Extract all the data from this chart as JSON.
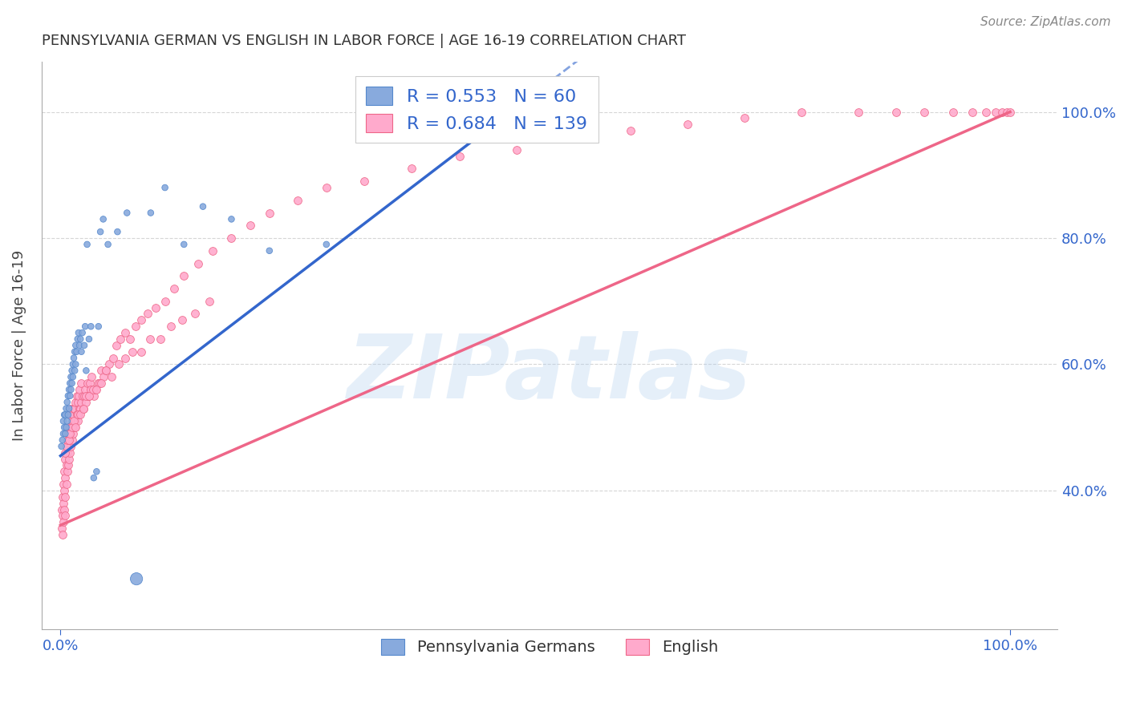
{
  "title": "PENNSYLVANIA GERMAN VS ENGLISH IN LABOR FORCE | AGE 16-19 CORRELATION CHART",
  "source": "Source: ZipAtlas.com",
  "ylabel": "In Labor Force | Age 16-19",
  "watermark": "ZIPatlas",
  "series": [
    {
      "label": "Pennsylvania Germans",
      "color": "#88AADD",
      "edge_color": "#5588CC",
      "R": 0.553,
      "N": 60,
      "line_color": "#3366CC",
      "intercept": 0.455,
      "slope": 1.15
    },
    {
      "label": "English",
      "color": "#FFAACC",
      "edge_color": "#EE6688",
      "R": 0.684,
      "N": 139,
      "line_color": "#EE6688",
      "intercept": 0.345,
      "slope": 0.655
    }
  ],
  "blue_scatter_x": [
    0.001,
    0.002,
    0.003,
    0.003,
    0.004,
    0.004,
    0.005,
    0.005,
    0.006,
    0.006,
    0.007,
    0.007,
    0.008,
    0.008,
    0.009,
    0.009,
    0.01,
    0.01,
    0.011,
    0.011,
    0.012,
    0.012,
    0.013,
    0.013,
    0.014,
    0.015,
    0.015,
    0.016,
    0.016,
    0.017,
    0.018,
    0.019,
    0.02,
    0.021,
    0.022,
    0.023,
    0.025,
    0.026,
    0.027,
    0.028,
    0.03,
    0.032,
    0.035,
    0.038,
    0.04,
    0.042,
    0.045,
    0.05,
    0.06,
    0.07,
    0.08,
    0.095,
    0.11,
    0.13,
    0.15,
    0.18,
    0.22,
    0.28,
    0.43,
    0.47
  ],
  "blue_scatter_y": [
    0.47,
    0.48,
    0.49,
    0.51,
    0.5,
    0.52,
    0.49,
    0.52,
    0.5,
    0.53,
    0.51,
    0.54,
    0.52,
    0.55,
    0.53,
    0.56,
    0.55,
    0.57,
    0.56,
    0.58,
    0.57,
    0.59,
    0.58,
    0.6,
    0.61,
    0.59,
    0.62,
    0.63,
    0.6,
    0.62,
    0.64,
    0.65,
    0.63,
    0.64,
    0.62,
    0.65,
    0.63,
    0.66,
    0.59,
    0.79,
    0.64,
    0.66,
    0.42,
    0.43,
    0.66,
    0.81,
    0.83,
    0.79,
    0.81,
    0.84,
    0.26,
    0.84,
    0.88,
    0.79,
    0.85,
    0.83,
    0.78,
    0.79,
    1.0,
    1.0
  ],
  "blue_scatter_sizes": [
    30,
    30,
    30,
    30,
    30,
    30,
    30,
    30,
    30,
    30,
    30,
    30,
    30,
    30,
    30,
    30,
    30,
    30,
    30,
    30,
    30,
    30,
    30,
    30,
    30,
    30,
    30,
    30,
    30,
    30,
    30,
    30,
    30,
    30,
    30,
    30,
    30,
    30,
    30,
    30,
    30,
    30,
    30,
    30,
    30,
    30,
    30,
    30,
    30,
    30,
    120,
    30,
    30,
    30,
    30,
    30,
    30,
    30,
    30,
    30
  ],
  "pink_scatter_x": [
    0.001,
    0.001,
    0.002,
    0.002,
    0.002,
    0.003,
    0.003,
    0.003,
    0.004,
    0.004,
    0.004,
    0.005,
    0.005,
    0.005,
    0.005,
    0.006,
    0.006,
    0.006,
    0.007,
    0.007,
    0.007,
    0.008,
    0.008,
    0.008,
    0.009,
    0.009,
    0.01,
    0.01,
    0.01,
    0.011,
    0.011,
    0.011,
    0.012,
    0.012,
    0.013,
    0.013,
    0.014,
    0.014,
    0.015,
    0.015,
    0.016,
    0.016,
    0.017,
    0.017,
    0.018,
    0.018,
    0.019,
    0.019,
    0.02,
    0.02,
    0.021,
    0.022,
    0.022,
    0.023,
    0.024,
    0.025,
    0.026,
    0.027,
    0.028,
    0.029,
    0.03,
    0.031,
    0.032,
    0.033,
    0.035,
    0.037,
    0.039,
    0.041,
    0.043,
    0.045,
    0.048,
    0.051,
    0.055,
    0.059,
    0.063,
    0.068,
    0.073,
    0.079,
    0.085,
    0.092,
    0.1,
    0.11,
    0.12,
    0.13,
    0.145,
    0.16,
    0.18,
    0.2,
    0.22,
    0.25,
    0.28,
    0.32,
    0.37,
    0.42,
    0.48,
    0.54,
    0.6,
    0.66,
    0.72,
    0.78,
    0.84,
    0.88,
    0.91,
    0.94,
    0.96,
    0.975,
    0.985,
    0.992,
    0.997,
    1.0,
    0.005,
    0.006,
    0.007,
    0.008,
    0.009,
    0.01,
    0.012,
    0.014,
    0.016,
    0.018,
    0.021,
    0.024,
    0.027,
    0.03,
    0.034,
    0.038,
    0.043,
    0.048,
    0.054,
    0.061,
    0.068,
    0.076,
    0.085,
    0.094,
    0.105,
    0.116,
    0.128,
    0.142,
    0.157
  ],
  "pink_scatter_y": [
    0.37,
    0.34,
    0.36,
    0.39,
    0.33,
    0.38,
    0.41,
    0.35,
    0.4,
    0.43,
    0.37,
    0.36,
    0.39,
    0.42,
    0.45,
    0.41,
    0.44,
    0.47,
    0.43,
    0.46,
    0.49,
    0.44,
    0.47,
    0.5,
    0.45,
    0.48,
    0.46,
    0.49,
    0.52,
    0.47,
    0.5,
    0.53,
    0.48,
    0.51,
    0.49,
    0.52,
    0.5,
    0.53,
    0.5,
    0.53,
    0.51,
    0.54,
    0.52,
    0.55,
    0.51,
    0.54,
    0.52,
    0.55,
    0.53,
    0.56,
    0.53,
    0.54,
    0.57,
    0.55,
    0.53,
    0.55,
    0.56,
    0.54,
    0.57,
    0.55,
    0.55,
    0.57,
    0.56,
    0.58,
    0.55,
    0.56,
    0.57,
    0.57,
    0.59,
    0.58,
    0.59,
    0.6,
    0.61,
    0.63,
    0.64,
    0.65,
    0.64,
    0.66,
    0.67,
    0.68,
    0.69,
    0.7,
    0.72,
    0.74,
    0.76,
    0.78,
    0.8,
    0.82,
    0.84,
    0.86,
    0.88,
    0.89,
    0.91,
    0.93,
    0.94,
    0.96,
    0.97,
    0.98,
    0.99,
    1.0,
    1.0,
    1.0,
    1.0,
    1.0,
    1.0,
    1.0,
    1.0,
    1.0,
    1.0,
    1.0,
    0.46,
    0.47,
    0.48,
    0.49,
    0.48,
    0.49,
    0.5,
    0.51,
    0.5,
    0.52,
    0.52,
    0.53,
    0.55,
    0.55,
    0.56,
    0.56,
    0.57,
    0.59,
    0.58,
    0.6,
    0.61,
    0.62,
    0.62,
    0.64,
    0.64,
    0.66,
    0.67,
    0.68,
    0.7
  ],
  "axis_color": "#AAAAAA",
  "grid_color": "#CCCCCC",
  "title_color": "#333333",
  "source_color": "#888888",
  "watermark_color": "#AACCEE",
  "tick_color": "#3366CC",
  "yticks": [
    0.4,
    0.6,
    0.8,
    1.0
  ],
  "ytick_labels": [
    "40.0%",
    "60.0%",
    "80.0%",
    "100.0%"
  ],
  "xlim": [
    -0.02,
    1.05
  ],
  "ylim": [
    0.18,
    1.08
  ]
}
